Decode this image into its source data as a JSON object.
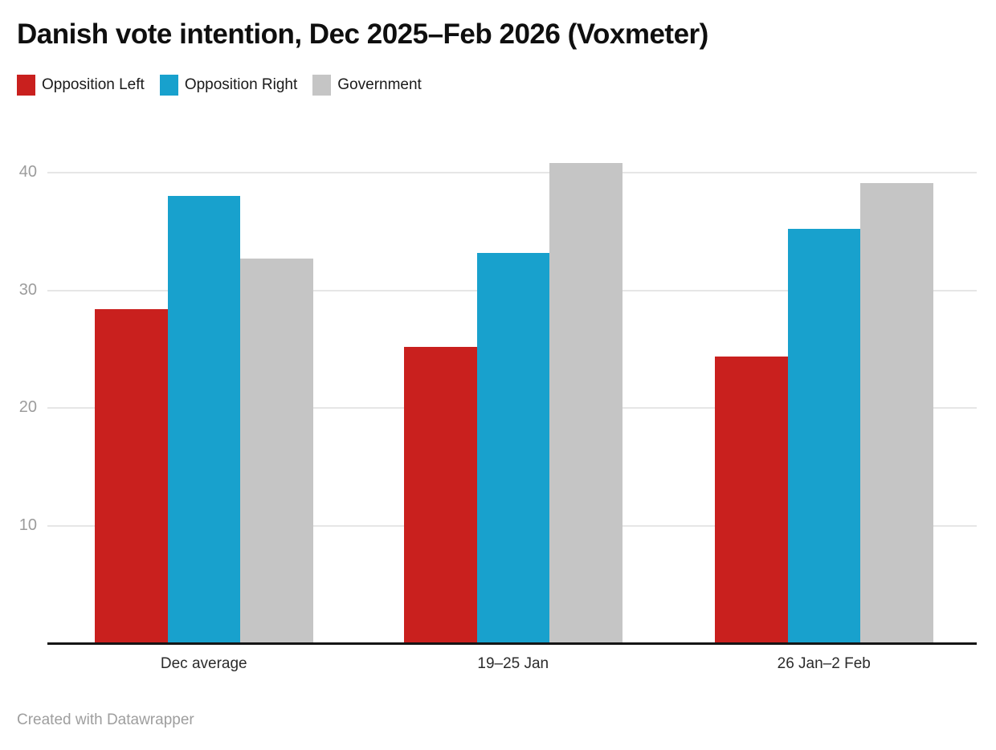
{
  "chart_data": {
    "type": "bar",
    "title": "Danish vote intention, Dec 2025–Feb 2026 (Voxmeter)",
    "categories": [
      "Dec average",
      "19–25 Jan",
      "26 Jan–2 Feb"
    ],
    "series": [
      {
        "name": "Opposition Left",
        "color": "#c9201e",
        "values": [
          28.4,
          25.2,
          24.4
        ]
      },
      {
        "name": "Opposition Right",
        "color": "#18a1cd",
        "values": [
          38.0,
          33.2,
          35.2
        ]
      },
      {
        "name": "Government",
        "color": "#c5c5c5",
        "values": [
          32.7,
          40.8,
          39.1
        ]
      }
    ],
    "ylim": [
      0,
      41.7
    ],
    "yticks": [
      10,
      20,
      30,
      40
    ],
    "grid": true,
    "legend_position": "top-left",
    "xlabel": "",
    "ylabel": ""
  },
  "footer": {
    "attribution": "Created with Datawrapper"
  }
}
